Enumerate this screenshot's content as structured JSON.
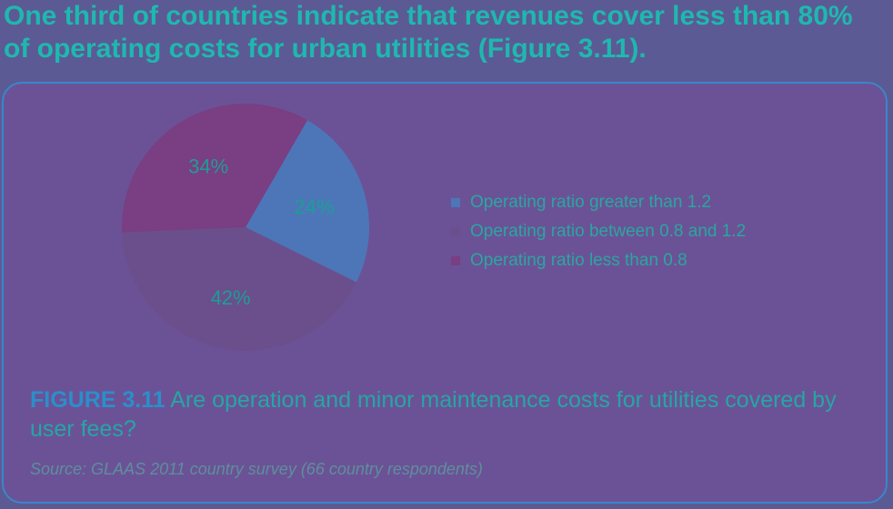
{
  "heading": {
    "line1": "One third of countries indicate that revenues cover less than 80%",
    "line2": "of operating costs for urban utilities (Figure 3.11)."
  },
  "figure": {
    "number": "FIGURE 3.11",
    "caption": "Are operation and minor maintenance costs for utilities covered by user fees?",
    "source": "Source: GLAAS 2011 country survey (66 country respondents)"
  },
  "chart_data": {
    "type": "pie",
    "title": "",
    "slices": [
      {
        "name": "Operating ratio greater than 1.2",
        "value": 24,
        "label": "24%",
        "color": "#4d76b8"
      },
      {
        "name": "Operating ratio between 0.8 and 1.2",
        "value": 42,
        "label": "42%",
        "color": "#6a4f8c"
      },
      {
        "name": "Operating ratio less than 0.8",
        "value": 34,
        "label": "34%",
        "color": "#7a3e82"
      }
    ],
    "start_angle_deg": 60,
    "direction": "clockwise",
    "legend_position": "right"
  }
}
